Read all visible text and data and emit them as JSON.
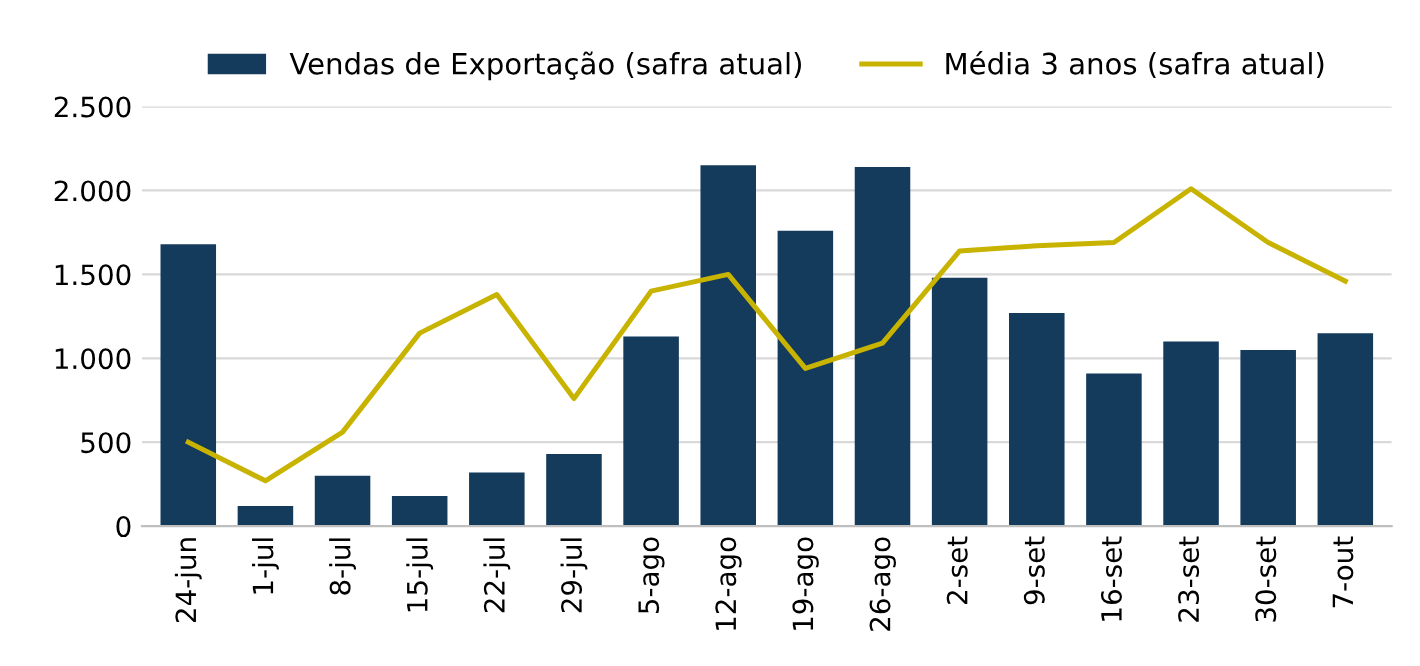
{
  "chart_data": {
    "type": "bar",
    "categories": [
      "24-jun",
      "1-jul",
      "8-jul",
      "15-jul",
      "22-jul",
      "29-jul",
      "5-ago",
      "12-ago",
      "19-ago",
      "26-ago",
      "2-set",
      "9-set",
      "16-set",
      "23-set",
      "30-set",
      "7-out"
    ],
    "series": [
      {
        "name": "Vendas de Exportação (safra atual)",
        "color": "#143a5c",
        "values": [
          1680,
          120,
          300,
          180,
          320,
          430,
          1130,
          2150,
          1760,
          2140,
          1480,
          1270,
          910,
          1100,
          1050,
          1150
        ]
      },
      {
        "name": "Média 3 anos (safra atual)",
        "type": "line",
        "color": "#c8b400",
        "values": [
          500,
          270,
          560,
          1150,
          1380,
          760,
          1400,
          1500,
          940,
          1090,
          1640,
          1670,
          1690,
          2010,
          1690,
          1460
        ]
      }
    ],
    "ylim": [
      0,
      2500
    ],
    "yticks": [
      0,
      {
        "value": 500,
        "label": "500"
      },
      {
        "value": 1000,
        "label": "1.000"
      },
      {
        "value": 1500,
        "label": "1.500"
      },
      {
        "value": 2000,
        "label": "2.000"
      },
      {
        "value": 2500,
        "label": "2.500"
      }
    ],
    "grid": "y",
    "legend": "top",
    "marker": "none",
    "line_style": "solid"
  }
}
